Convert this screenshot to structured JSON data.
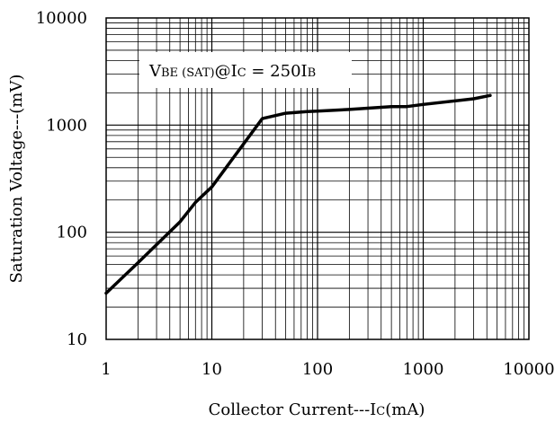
{
  "chart_data": {
    "type": "line",
    "x_scale": "log",
    "y_scale": "log",
    "xlim": [
      1,
      10000
    ],
    "ylim": [
      10,
      10000
    ],
    "x_ticks": [
      {
        "value": 1,
        "label": "1"
      },
      {
        "value": 10,
        "label": "10"
      },
      {
        "value": 100,
        "label": "100"
      },
      {
        "value": 1000,
        "label": "1000"
      },
      {
        "value": 10000,
        "label": "10000"
      }
    ],
    "y_ticks": [
      {
        "value": 10,
        "label": "10"
      },
      {
        "value": 100,
        "label": "100"
      },
      {
        "value": 1000,
        "label": "1000"
      },
      {
        "value": 10000,
        "label": "10000"
      }
    ],
    "xlabel": {
      "main": "Collector Current---I",
      "sub": "C",
      "unit": "(mA)"
    },
    "ylabel": "Saturation Voltage---(mV)",
    "annotation": {
      "v": "V",
      "v_sub": "BE (SAT)",
      "at": "@I",
      "ic_sub": "C",
      "eq": " = 250I",
      "ib_sub": "B"
    },
    "grid": true,
    "series": [
      {
        "x": [
          1,
          2,
          5,
          7,
          10,
          30,
          50,
          80,
          100,
          200,
          500,
          700,
          1000,
          3000,
          4300
        ],
        "y": [
          27,
          52,
          125,
          190,
          265,
          1150,
          1290,
          1340,
          1350,
          1400,
          1490,
          1490,
          1560,
          1760,
          1890
        ]
      }
    ]
  }
}
